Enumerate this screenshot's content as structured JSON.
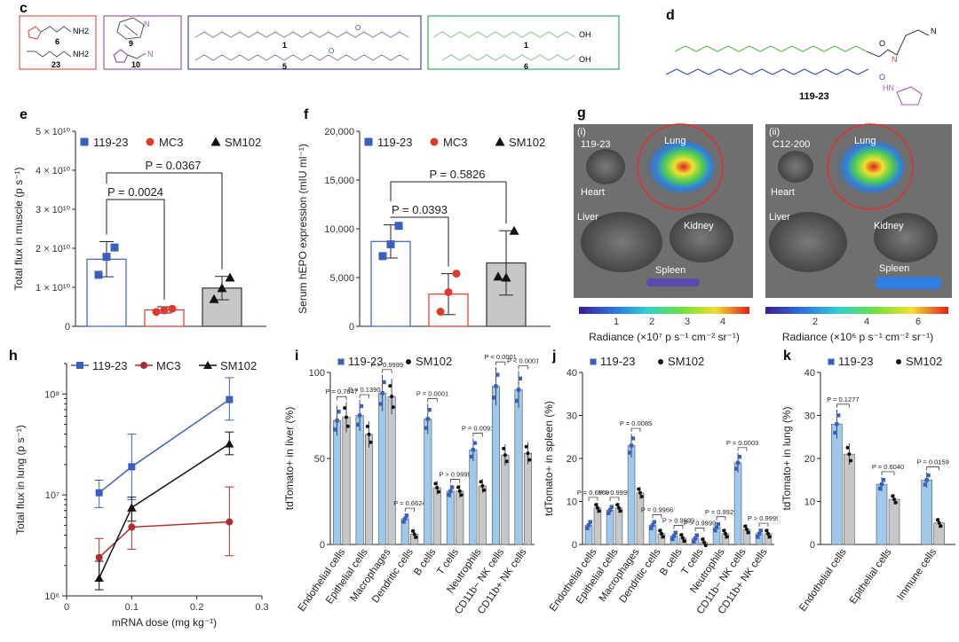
{
  "colors": {
    "blue": "#3a5fbf",
    "red": "#e03a2f",
    "black": "#111111",
    "gray": "#c7c7c7",
    "lightblue": "#9ec9ea",
    "darkred": "#b22b2b"
  },
  "panel_c": {
    "label": "c",
    "boxes": [
      {
        "border": "#e05a4a",
        "items": [
          "6",
          "23"
        ],
        "chem": [
          "NH2",
          "NH2"
        ]
      },
      {
        "border": "#9a5ab0",
        "items": [
          "9",
          "10"
        ]
      },
      {
        "border": "#3a4fa8",
        "items": [
          "1",
          "5"
        ]
      },
      {
        "border": "#3aa85a",
        "items": [
          "1",
          "6"
        ],
        "chem": [
          "OH",
          "OH"
        ]
      }
    ]
  },
  "panel_d": {
    "label": "d",
    "compound": "119-23",
    "atoms": [
      "N",
      "O",
      "N",
      "O",
      "HN",
      "O",
      "O",
      "O"
    ]
  },
  "panel_g": {
    "label": "g",
    "images": [
      {
        "roman": "(i)",
        "name": "119-23",
        "organs": [
          "Lung",
          "Heart",
          "Liver",
          "Kidney",
          "Spleen"
        ],
        "bar_ticks": [
          "1",
          "2",
          "3",
          "4"
        ],
        "bar_label": "Radiance (×10⁷ p s⁻¹ cm⁻² sr⁻¹)"
      },
      {
        "roman": "(ii)",
        "name": "C12-200",
        "organs": [
          "Lung",
          "Heart",
          "Liver",
          "Kidney",
          "Spleen"
        ],
        "bar_ticks": [
          "2",
          "4",
          "6"
        ],
        "bar_label": "Radiance (×10⁶ p s⁻¹ cm⁻² sr⁻¹)"
      }
    ]
  },
  "chart_data": [
    {
      "id": "e",
      "type": "bar",
      "title": "",
      "categories": [
        "119-23",
        "MC3",
        "SM102"
      ],
      "values": [
        17200000000.0,
        4200000000.0,
        9800000000.0
      ],
      "errors": [
        4500000000.0,
        800000000.0,
        3000000000.0
      ],
      "points": [
        [
          13200000000.0,
          17800000000.0,
          20200000000.0
        ],
        [
          3700000000.0,
          4100000000.0,
          4500000000.0
        ],
        [
          7000000000.0,
          9800000000.0,
          12500000000.0
        ]
      ],
      "ylim": [
        0,
        50000000000.0
      ],
      "yticks_labels": [
        "0",
        "1 × 10¹⁰",
        "2 × 10¹⁰",
        "3 × 10¹⁰",
        "4 × 10¹⁰",
        "5 × 10¹⁰"
      ],
      "ylabel": "Total flux in muscle (p s⁻¹)",
      "legend": [
        "119-23",
        "MC3",
        "SM102"
      ],
      "pvalues": [
        "P = 0.0024",
        "P = 0.0367"
      ]
    },
    {
      "id": "f",
      "type": "bar",
      "categories": [
        "119-23",
        "MC3",
        "SM102"
      ],
      "values": [
        8700,
        3300,
        6500
      ],
      "errors": [
        1700,
        2100,
        3300
      ],
      "points": [
        [
          7200,
          8400,
          10300
        ],
        [
          1500,
          3500,
          5400
        ],
        [
          5100,
          5000,
          9800
        ]
      ],
      "ylim": [
        0,
        20000
      ],
      "yticks_labels": [
        "0",
        "5,000",
        "10,000",
        "15,000",
        "20,000"
      ],
      "ylabel": "Serum hEPO expression (mIU ml⁻¹)",
      "legend": [
        "119-23",
        "MC3",
        "SM102"
      ],
      "pvalues": [
        "P = 0.0393",
        "P = 0.5826"
      ]
    },
    {
      "id": "h",
      "type": "line",
      "x": [
        0.05,
        0.1,
        0.25
      ],
      "series": [
        {
          "name": "119-23",
          "values": [
            10500000.0,
            19000000.0,
            88000000.0
          ],
          "err_hi": [
            14000000.0,
            40000000.0,
            145000000.0
          ],
          "err_lo": [
            7500000.0,
            9000000.0,
            55000000.0
          ]
        },
        {
          "name": "MC3",
          "values": [
            2400000.0,
            4800000.0,
            5400000.0
          ],
          "err_hi": [
            3700000.0,
            6900000.0,
            12000000.0
          ],
          "err_lo": [
            1400000.0,
            2900000.0,
            2500000.0
          ]
        },
        {
          "name": "SM102",
          "values": [
            1500000.0,
            7500000.0,
            32000000.0
          ],
          "err_hi": [
            2200000.0,
            9500000.0,
            42000000.0
          ],
          "err_lo": [
            1150000.0,
            5500000.0,
            25000000.0
          ]
        }
      ],
      "xlim": [
        0,
        0.3
      ],
      "xticks_labels": [
        "0",
        "0.1",
        "0.2",
        "0.3"
      ],
      "ylim": [
        1000000.0,
        200000000.0
      ],
      "yticks_labels": [
        "10⁶",
        "10⁷",
        "10⁸"
      ],
      "xlabel": "mRNA dose (mg kg⁻¹)",
      "ylabel": "Total flux in lung (p s⁻¹)",
      "legend": [
        "119-23",
        "MC3",
        "SM102"
      ]
    },
    {
      "id": "i",
      "type": "bar",
      "categories": [
        "Endothelial cells",
        "Epithelial cells",
        "Macrophages",
        "Dendritic cells",
        "B cells",
        "T cells",
        "Neutrophils",
        "CD11b− NK cells",
        "CD11b+ NK cells"
      ],
      "series": [
        {
          "name": "119-23",
          "values": [
            72,
            75,
            88,
            15,
            73,
            31,
            55,
            92,
            90
          ]
        },
        {
          "name": "SM102",
          "values": [
            74,
            64,
            86,
            6,
            33,
            31,
            34,
            52,
            53
          ]
        }
      ],
      "ylim": [
        0,
        100
      ],
      "yticks_labels": [
        "0",
        "50",
        "100"
      ],
      "ylabel": "tdTomato+ in liver (%)",
      "legend": [
        "119-23",
        "SM102"
      ],
      "pvalues": [
        "P = 0.7647",
        "P = 0.1390",
        "P > 0.9999",
        "P = 0.6624",
        "P = 0.0001",
        "P > 0.9999",
        "P = 0.0091",
        "P < 0.0001",
        "P < 0.0001"
      ]
    },
    {
      "id": "j",
      "type": "bar",
      "categories": [
        "Endothelial cells",
        "Epithelial cells",
        "Macrophages",
        "Dendritic cells",
        "B cells",
        "T cells",
        "Neutrophils",
        "CD11b− NK cells",
        "CD11b+ NK cells"
      ],
      "series": [
        {
          "name": "119-23",
          "values": [
            4.5,
            8,
            23,
            4.5,
            2,
            1.4,
            4,
            19,
            2.5
          ]
        },
        {
          "name": "SM102",
          "values": [
            8.5,
            8.5,
            12,
            2.5,
            1.5,
            0.5,
            2.5,
            3.5,
            2.5
          ]
        }
      ],
      "ylim": [
        0,
        40
      ],
      "yticks_labels": [
        "0",
        "10",
        "20",
        "30",
        "40"
      ],
      "ylabel": "tdTomato+ in spleen (%)",
      "legend": [
        "119-23",
        "SM102"
      ],
      "pvalues": [
        "P = 0.6569",
        "P > 0.9999",
        "P = 0.0085",
        "P = 0.9966",
        "P > 0.9999",
        "P > 0.9999",
        "P = 0.9929",
        "P = 0.0003",
        "P > 0.9999"
      ]
    },
    {
      "id": "k",
      "type": "bar",
      "categories": [
        "Endothelial cells",
        "Epithelial cells",
        "Immune cells"
      ],
      "series": [
        {
          "name": "119-23",
          "values": [
            28,
            14,
            15
          ]
        },
        {
          "name": "SM102",
          "values": [
            21,
            10.5,
            5
          ]
        }
      ],
      "ylim": [
        0,
        40
      ],
      "yticks_labels": [
        "0",
        "10",
        "20",
        "30",
        "40"
      ],
      "ylabel": "tdTomato+ in lung (%)",
      "legend": [
        "119-23",
        "SM102"
      ],
      "pvalues": [
        "P = 0.1277",
        "P = 0.6040",
        "P = 0.0159"
      ]
    }
  ]
}
